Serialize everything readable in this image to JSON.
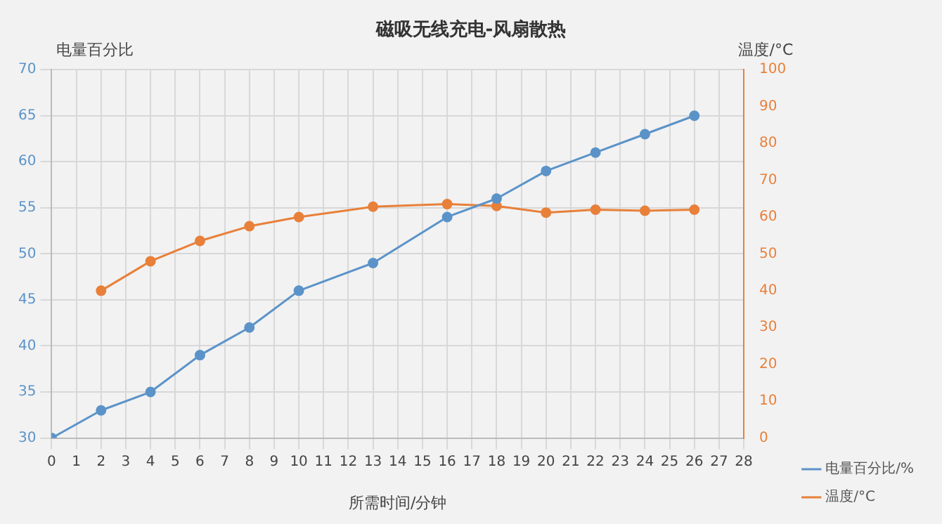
{
  "chart_data": {
    "type": "line",
    "title": "磁吸无线充电-风扇散热",
    "xlabel": "所需时间/分钟",
    "ylabel": "电量百分比",
    "y2label": "温度/°C",
    "xlim": [
      0,
      28
    ],
    "xticks": [
      0,
      1,
      2,
      3,
      4,
      5,
      6,
      7,
      8,
      9,
      10,
      11,
      12,
      13,
      14,
      15,
      16,
      17,
      18,
      19,
      20,
      21,
      22,
      23,
      24,
      25,
      26,
      27,
      28
    ],
    "ylim": [
      30,
      70
    ],
    "yticks": [
      30,
      35,
      40,
      45,
      50,
      55,
      60,
      65,
      70
    ],
    "y2lim": [
      0,
      100
    ],
    "y2ticks": [
      0,
      10,
      20,
      30,
      40,
      50,
      60,
      70,
      80,
      90,
      100
    ],
    "grid": true,
    "legend": "bottom right",
    "marker": "circle",
    "line_style": "solid",
    "series": [
      {
        "name": "电量百分比/%",
        "color": "#5b93c9",
        "x": [
          0,
          2,
          4,
          6,
          8,
          10,
          13,
          16,
          18,
          20,
          22,
          24,
          26
        ],
        "values": [
          30,
          33,
          35,
          39,
          42,
          46,
          49,
          54,
          56,
          59,
          61,
          63,
          65
        ]
      },
      {
        "name": "温度/°C",
        "color": "#e8803a",
        "axis": "y2",
        "x": [
          2,
          4,
          6,
          8,
          10,
          13,
          16,
          18,
          20,
          22,
          24,
          26
        ],
        "values": [
          40,
          48,
          53.5,
          57.5,
          60,
          62.8,
          63.5,
          63,
          61.2,
          62,
          61.7,
          62
        ]
      }
    ]
  }
}
